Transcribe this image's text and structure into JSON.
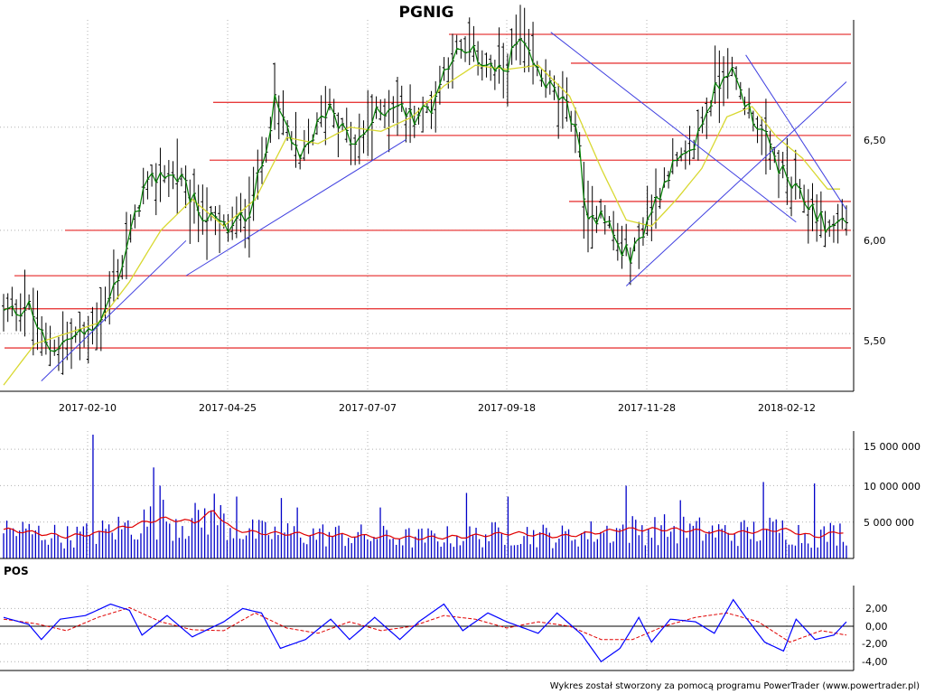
{
  "chart_data": [
    {
      "type": "ohlc",
      "title": "PGNIG",
      "date_labels": [
        "2017-02-10",
        "2017-04-25",
        "2017-07-07",
        "2017-09-18",
        "2017-11-28",
        "2018-02-12"
      ],
      "y_ticks": [
        "5,50",
        "6,00",
        "6,50"
      ],
      "ylim": [
        5.22,
        7.02
      ],
      "bar_count": 200,
      "close_path": [
        [
          0,
          5.6
        ],
        [
          8,
          5.63
        ],
        [
          14,
          5.42
        ],
        [
          22,
          5.48
        ],
        [
          26,
          5.5
        ],
        [
          32,
          5.6
        ],
        [
          38,
          5.85
        ],
        [
          44,
          6.18
        ],
        [
          50,
          6.28
        ],
        [
          56,
          6.25
        ],
        [
          62,
          6.1
        ],
        [
          66,
          6.05
        ],
        [
          72,
          6.0
        ],
        [
          78,
          6.1
        ],
        [
          82,
          6.3
        ],
        [
          86,
          6.62
        ],
        [
          90,
          6.5
        ],
        [
          94,
          6.32
        ],
        [
          98,
          6.45
        ],
        [
          104,
          6.62
        ],
        [
          108,
          6.48
        ],
        [
          112,
          6.4
        ],
        [
          118,
          6.55
        ],
        [
          124,
          6.62
        ],
        [
          130,
          6.55
        ],
        [
          136,
          6.6
        ],
        [
          142,
          6.85
        ],
        [
          150,
          6.85
        ],
        [
          158,
          6.75
        ],
        [
          164,
          6.92
        ],
        [
          168,
          6.8
        ],
        [
          176,
          6.65
        ],
        [
          182,
          6.52
        ],
        [
          186,
          6.0
        ],
        [
          190,
          6.12
        ],
        [
          196,
          5.9
        ],
        [
          200,
          5.88
        ],
        [
          206,
          6.1
        ],
        [
          212,
          6.3
        ],
        [
          218,
          6.35
        ],
        [
          224,
          6.6
        ],
        [
          230,
          6.8
        ],
        [
          236,
          6.62
        ],
        [
          242,
          6.45
        ],
        [
          246,
          6.32
        ],
        [
          252,
          6.18
        ],
        [
          258,
          6.1
        ],
        [
          262,
          6.0
        ],
        [
          266,
          6.05
        ]
      ],
      "moving_average_path": [
        [
          0,
          5.25
        ],
        [
          10,
          5.45
        ],
        [
          20,
          5.5
        ],
        [
          30,
          5.55
        ],
        [
          40,
          5.75
        ],
        [
          50,
          6.0
        ],
        [
          60,
          6.15
        ],
        [
          70,
          6.02
        ],
        [
          80,
          6.15
        ],
        [
          90,
          6.45
        ],
        [
          100,
          6.42
        ],
        [
          110,
          6.5
        ],
        [
          120,
          6.48
        ],
        [
          130,
          6.55
        ],
        [
          140,
          6.7
        ],
        [
          150,
          6.8
        ],
        [
          160,
          6.78
        ],
        [
          170,
          6.8
        ],
        [
          180,
          6.65
        ],
        [
          190,
          6.3
        ],
        [
          198,
          6.05
        ],
        [
          206,
          6.02
        ],
        [
          214,
          6.15
        ],
        [
          222,
          6.3
        ],
        [
          230,
          6.55
        ],
        [
          238,
          6.6
        ],
        [
          246,
          6.45
        ],
        [
          254,
          6.35
        ],
        [
          262,
          6.2
        ],
        [
          266,
          6.2
        ]
      ],
      "horizontal_levels": [
        6.95,
        6.81,
        6.62,
        6.46,
        6.34,
        6.14,
        6.0,
        5.78,
        5.62,
        5.43
      ],
      "trendlines": [
        [
          [
            12,
            5.27
          ],
          [
            58,
            5.95
          ]
        ],
        [
          [
            58,
            5.78
          ],
          [
            128,
            6.44
          ]
        ],
        [
          [
            198,
            5.73
          ],
          [
            268,
            6.72
          ]
        ],
        [
          [
            174,
            6.96
          ],
          [
            252,
            6.04
          ]
        ],
        [
          [
            236,
            6.85
          ],
          [
            268,
            6.1
          ]
        ]
      ]
    },
    {
      "type": "bar",
      "title": "",
      "y_ticks": [
        "5 000 000",
        "10 000 000",
        "15 000 000"
      ],
      "ylim": [
        0,
        17500000
      ],
      "bar_count": 265,
      "level_path": [
        [
          0,
          4.0
        ],
        [
          20,
          3.0
        ],
        [
          30,
          3.5
        ],
        [
          40,
          4.5
        ],
        [
          50,
          5.5
        ],
        [
          60,
          5.0
        ],
        [
          66,
          6.5
        ],
        [
          72,
          4.0
        ],
        [
          80,
          3.5
        ],
        [
          100,
          3.3
        ],
        [
          130,
          2.8
        ],
        [
          145,
          3.0
        ],
        [
          160,
          3.5
        ],
        [
          175,
          3.0
        ],
        [
          195,
          4.0
        ],
        [
          210,
          4.0
        ],
        [
          230,
          3.5
        ],
        [
          245,
          4.0
        ],
        [
          255,
          3.0
        ],
        [
          265,
          3.8
        ]
      ],
      "peaks": [
        [
          28,
          17000000
        ],
        [
          47,
          12500000
        ],
        [
          49,
          10000000
        ],
        [
          73,
          8500000
        ],
        [
          87,
          8300000
        ],
        [
          92,
          7000000
        ],
        [
          118,
          7000000
        ],
        [
          145,
          9000000
        ],
        [
          158,
          8500000
        ],
        [
          195,
          10000000
        ],
        [
          212,
          8000000
        ],
        [
          238,
          10500000
        ],
        [
          254,
          10300000
        ]
      ]
    },
    {
      "type": "line",
      "title": "POS",
      "y_ticks": [
        "2,00",
        "0,00",
        "-2,00",
        "-4,00"
      ],
      "ylim": [
        -4.6,
        3.2
      ],
      "series_path": [
        [
          0,
          1.0
        ],
        [
          8,
          0.2
        ],
        [
          12,
          -1.5
        ],
        [
          18,
          0.8
        ],
        [
          26,
          1.2
        ],
        [
          34,
          2.5
        ],
        [
          40,
          1.8
        ],
        [
          44,
          -1.0
        ],
        [
          52,
          1.2
        ],
        [
          60,
          -1.2
        ],
        [
          70,
          0.5
        ],
        [
          76,
          2.0
        ],
        [
          82,
          1.5
        ],
        [
          88,
          -2.5
        ],
        [
          96,
          -1.5
        ],
        [
          104,
          0.8
        ],
        [
          110,
          -1.5
        ],
        [
          118,
          1.0
        ],
        [
          126,
          -1.5
        ],
        [
          132,
          0.5
        ],
        [
          140,
          2.5
        ],
        [
          146,
          -0.5
        ],
        [
          154,
          1.5
        ],
        [
          160,
          0.5
        ],
        [
          170,
          -0.8
        ],
        [
          176,
          1.5
        ],
        [
          184,
          -1.0
        ],
        [
          190,
          -4.0
        ],
        [
          196,
          -2.5
        ],
        [
          202,
          1.0
        ],
        [
          206,
          -1.8
        ],
        [
          212,
          0.8
        ],
        [
          220,
          0.5
        ],
        [
          226,
          -0.8
        ],
        [
          232,
          3.0
        ],
        [
          236,
          1.0
        ],
        [
          242,
          -1.8
        ],
        [
          248,
          -2.8
        ],
        [
          252,
          0.8
        ],
        [
          258,
          -1.5
        ],
        [
          264,
          -1.0
        ],
        [
          268,
          0.5
        ]
      ],
      "signal_path": [
        [
          0,
          0.8
        ],
        [
          10,
          0.3
        ],
        [
          20,
          -0.5
        ],
        [
          30,
          1.0
        ],
        [
          40,
          2.1
        ],
        [
          50,
          0.5
        ],
        [
          60,
          -0.4
        ],
        [
          70,
          -0.5
        ],
        [
          80,
          1.5
        ],
        [
          90,
          -0.2
        ],
        [
          100,
          -0.8
        ],
        [
          110,
          0.5
        ],
        [
          120,
          -0.5
        ],
        [
          130,
          0.0
        ],
        [
          140,
          1.2
        ],
        [
          150,
          0.8
        ],
        [
          160,
          -0.2
        ],
        [
          170,
          0.5
        ],
        [
          180,
          0.0
        ],
        [
          190,
          -1.5
        ],
        [
          200,
          -1.5
        ],
        [
          210,
          0.0
        ],
        [
          220,
          1.0
        ],
        [
          230,
          1.5
        ],
        [
          240,
          0.5
        ],
        [
          250,
          -1.8
        ],
        [
          260,
          -0.5
        ],
        [
          268,
          -1.0
        ]
      ]
    }
  ],
  "footer": "Wykres został stworzony za pomocą programu PowerTrader (www.powertrader.pl)",
  "colors": {
    "price_bars": "#000000",
    "close_line": "#008000",
    "moving_average": "#d8d830",
    "horizontal_levels": "#e83c3c",
    "trendlines": "#4040e0",
    "volume_bars": "#0000c8",
    "volume_average": "#e00000",
    "oscillator": "#0000ff",
    "oscillator_signal": "#e00000",
    "grid": "#b0b0b0"
  }
}
